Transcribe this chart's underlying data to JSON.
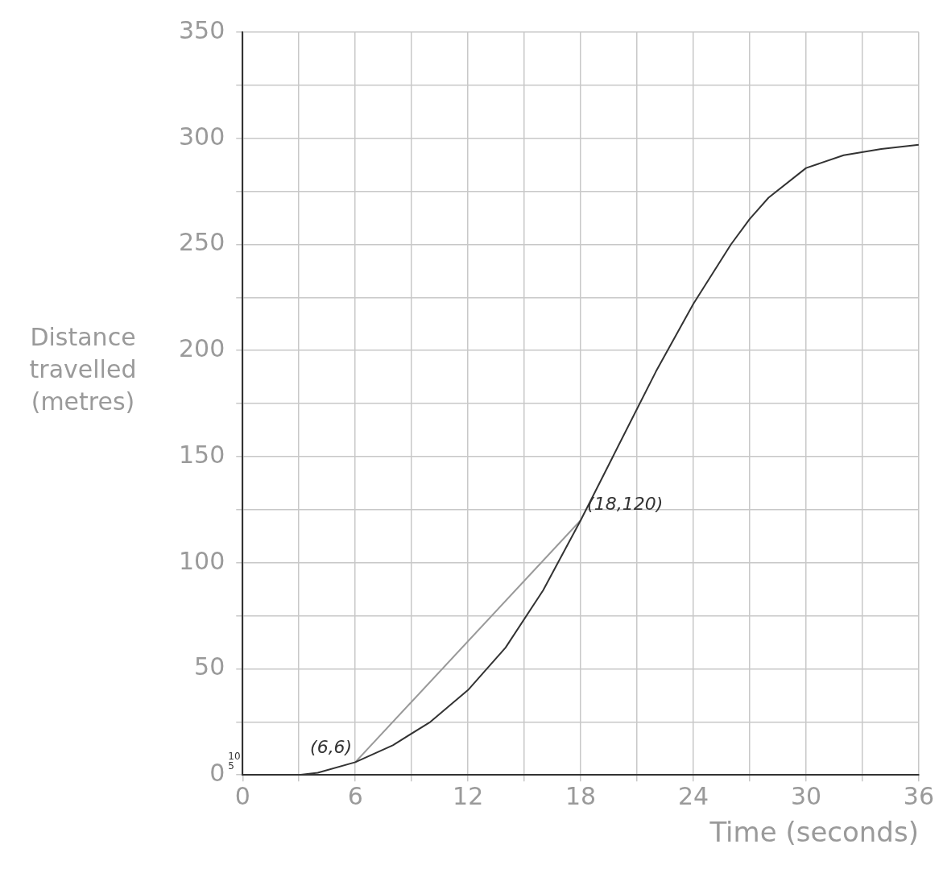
{
  "chart_data": {
    "type": "line",
    "xlabel": "Time (seconds)",
    "ylabel": "Distance travelled (metres)",
    "series": [
      {
        "color": "#333333",
        "x": [
          0,
          3,
          4,
          6,
          8,
          10,
          12,
          14,
          16,
          18,
          20,
          22,
          24,
          26,
          27,
          28,
          30,
          32,
          34,
          36
        ],
        "values": [
          0,
          0,
          1,
          6,
          14,
          25,
          40,
          60,
          87,
          120,
          155,
          190,
          222,
          250,
          262,
          272,
          286,
          292,
          295,
          297
        ]
      },
      {
        "color": "#999999",
        "x": [
          6,
          18
        ],
        "values": [
          6,
          120
        ]
      }
    ],
    "xlim": [
      0,
      36
    ],
    "ylim": [
      0,
      350
    ],
    "xticks": [
      0,
      {
        "value": 3,
        "label": null
      },
      6,
      {
        "value": 9,
        "label": null
      },
      12,
      {
        "value": 15,
        "label": null
      },
      18,
      {
        "value": 21,
        "label": null
      },
      24,
      {
        "value": 27,
        "label": null
      },
      30,
      {
        "value": 33,
        "label": null
      },
      36
    ],
    "yticks": [
      0,
      {
        "value": 25,
        "label": null
      },
      50,
      {
        "value": 75,
        "label": null
      },
      100,
      {
        "value": 125,
        "label": null
      },
      150,
      {
        "value": 175,
        "label": null
      },
      200,
      {
        "value": 225,
        "label": null
      },
      250,
      {
        "value": 275,
        "label": null
      },
      300,
      {
        "value": 325,
        "label": null
      },
      350
    ],
    "annotations": [
      {
        "text": "(6,6)",
        "x": 6,
        "y": 6
      },
      {
        "text": "(18,120)",
        "x": 18,
        "y": 120
      },
      "10",
      "5"
    ],
    "grid": true,
    "marker": "none",
    "line_style": "solid",
    "legend": false
  }
}
